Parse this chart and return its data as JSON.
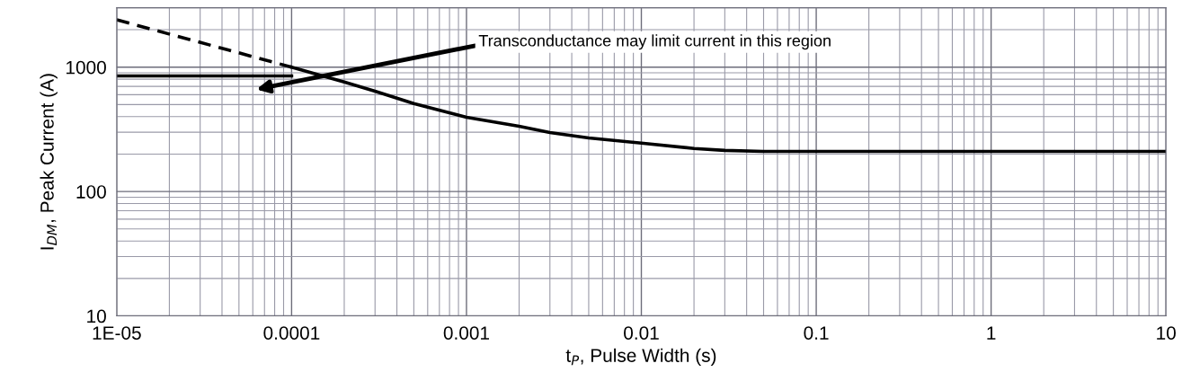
{
  "chart_data": {
    "type": "line",
    "xlabel": "t$_{P}$, Pulse Width (s)",
    "ylabel": "I$_{DM}$, Peak Current (A)",
    "log": "xy",
    "xlim": [
      1e-05,
      10
    ],
    "ylim": [
      10,
      3000
    ],
    "xticks": [
      {
        "value": 1e-05,
        "label": "1E-05"
      },
      0.0001,
      0.001,
      0.01,
      0.1,
      1,
      10
    ],
    "yticks": [
      10,
      100,
      1000
    ],
    "grid": true,
    "marker": "none",
    "annotations": [
      "Transconductance may limit current in this region"
    ],
    "series": [
      {
        "color": "#000000",
        "line_style": "dashed",
        "x": [
          1e-05,
          0.0001
        ],
        "values": [
          2400,
          1000
        ]
      },
      {
        "color": "#000000",
        "line_style": "solid",
        "x": [
          1e-05,
          0.0001
        ],
        "values": [
          850,
          850
        ]
      },
      {
        "color": "#000000",
        "line_style": "solid",
        "x": [
          0.0001,
          0.0002,
          0.0003,
          0.0005,
          0.001,
          0.002,
          0.003,
          0.005,
          0.01,
          0.02,
          0.03,
          0.05,
          0.1,
          1,
          10
        ],
        "values": [
          1000,
          760,
          640,
          510,
          395,
          335,
          298,
          270,
          245,
          222,
          214,
          210,
          210,
          210,
          210
        ]
      }
    ]
  }
}
